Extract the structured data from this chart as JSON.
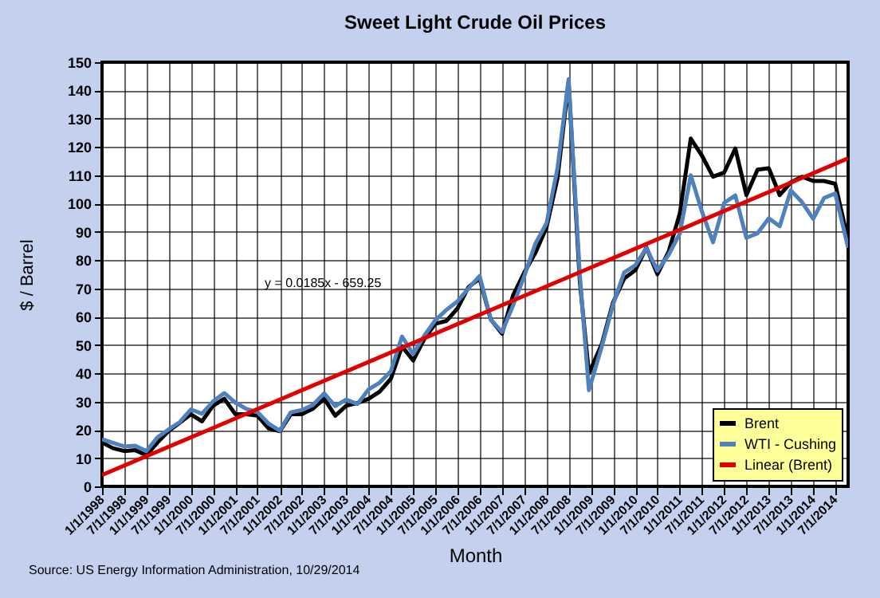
{
  "chart_data": {
    "type": "line",
    "title": "Sweet Light Crude Oil Prices",
    "xlabel": "Month",
    "ylabel": "$ / Barrel",
    "x": [
      "1998-01-01",
      "1998-04-01",
      "1998-07-01",
      "1998-10-01",
      "1999-01-01",
      "1999-04-01",
      "1999-07-01",
      "1999-10-01",
      "2000-01-01",
      "2000-04-01",
      "2000-07-01",
      "2000-10-01",
      "2001-01-01",
      "2001-04-01",
      "2001-07-01",
      "2001-10-01",
      "2002-01-01",
      "2002-04-01",
      "2002-07-01",
      "2002-10-01",
      "2003-01-01",
      "2003-04-01",
      "2003-07-01",
      "2003-10-01",
      "2004-01-01",
      "2004-04-01",
      "2004-07-01",
      "2004-10-01",
      "2005-01-01",
      "2005-04-01",
      "2005-07-01",
      "2005-10-01",
      "2006-01-01",
      "2006-04-01",
      "2006-07-01",
      "2006-10-01",
      "2007-01-01",
      "2007-04-01",
      "2007-07-01",
      "2007-10-01",
      "2008-01-01",
      "2008-04-01",
      "2008-07-01",
      "2008-10-01",
      "2008-12-15",
      "2009-04-01",
      "2009-07-01",
      "2009-10-01",
      "2010-01-01",
      "2010-04-01",
      "2010-07-01",
      "2010-10-01",
      "2011-01-01",
      "2011-04-01",
      "2011-07-01",
      "2011-10-01",
      "2012-01-01",
      "2012-04-01",
      "2012-07-01",
      "2012-10-01",
      "2013-01-01",
      "2013-04-01",
      "2013-07-01",
      "2013-10-01",
      "2014-01-01",
      "2014-04-01",
      "2014-07-01",
      "2014-10-15"
    ],
    "series": [
      {
        "name": "Brent",
        "color": "#000000",
        "values": [
          15.5,
          13.5,
          12.5,
          12.8,
          11,
          15.5,
          19.5,
          22.5,
          25.5,
          23,
          28.5,
          31,
          25.5,
          25.5,
          25,
          20.5,
          19.5,
          25.5,
          25.5,
          27.5,
          31,
          25,
          28.5,
          29.5,
          31,
          33.5,
          38,
          49.5,
          44.5,
          52,
          57.5,
          58.5,
          63,
          70.5,
          73.5,
          59,
          54,
          67.5,
          75.5,
          82.5,
          91.5,
          109,
          143,
          72.5,
          40,
          50.5,
          65,
          73.5,
          76.5,
          84.5,
          75,
          83,
          96.5,
          123,
          117,
          109.5,
          111,
          119.5,
          103,
          112,
          112.5,
          103,
          107.5,
          109.5,
          108,
          108,
          107,
          87
        ]
      },
      {
        "name": "WTI - Cushing",
        "color": "#4f81bd",
        "values": [
          16.7,
          15.4,
          14.1,
          14.4,
          12.5,
          17.3,
          20.1,
          22.7,
          27.2,
          25.7,
          30,
          33,
          29.6,
          27.4,
          26.3,
          22.2,
          19.7,
          26.2,
          27,
          28.8,
          32.9,
          28.4,
          30.7,
          29.1,
          34.3,
          36.7,
          40.7,
          53,
          46.8,
          53.2,
          58.7,
          62.4,
          65.5,
          70,
          74.4,
          58.9,
          54.6,
          63.9,
          74.1,
          85.7,
          93,
          112.5,
          144,
          75,
          34,
          49.6,
          64.2,
          75.7,
          78.2,
          84.3,
          76.3,
          81.9,
          89.4,
          110,
          97.3,
          86.3,
          100.3,
          102.9,
          87.9,
          89.5,
          94.8,
          92,
          104.7,
          100.5,
          94.6,
          102,
          103.6,
          84.4
        ]
      },
      {
        "name": "Linear (Brent)",
        "color": "#e00000",
        "x": [
          "1998-01-01",
          "2014-10-15"
        ],
        "values": [
          4,
          116
        ]
      }
    ],
    "xlim": [
      "1998-01-01",
      "2014-10-15"
    ],
    "xticks": [
      {
        "value": "1998-01-01",
        "label": "1/1/1998"
      },
      {
        "value": "1998-07-01",
        "label": "7/1/1998"
      },
      {
        "value": "1999-01-01",
        "label": "1/1/1999"
      },
      {
        "value": "1999-07-01",
        "label": "7/1/1999"
      },
      {
        "value": "2000-01-01",
        "label": "1/1/2000"
      },
      {
        "value": "2000-07-01",
        "label": "7/1/2000"
      },
      {
        "value": "2001-01-01",
        "label": "1/1/2001"
      },
      {
        "value": "2001-07-01",
        "label": "7/1/2001"
      },
      {
        "value": "2002-01-01",
        "label": "1/1/2002"
      },
      {
        "value": "2002-07-01",
        "label": "7/1/2002"
      },
      {
        "value": "2003-01-01",
        "label": "1/1/2003"
      },
      {
        "value": "2003-07-01",
        "label": "7/1/2003"
      },
      {
        "value": "2004-01-01",
        "label": "1/1/2004"
      },
      {
        "value": "2004-07-01",
        "label": "7/1/2004"
      },
      {
        "value": "2005-01-01",
        "label": "1/1/2005"
      },
      {
        "value": "2005-07-01",
        "label": "7/1/2005"
      },
      {
        "value": "2006-01-01",
        "label": "1/1/2006"
      },
      {
        "value": "2006-07-01",
        "label": "7/1/2006"
      },
      {
        "value": "2007-01-01",
        "label": "1/1/2007"
      },
      {
        "value": "2007-07-01",
        "label": "7/1/2007"
      },
      {
        "value": "2008-01-01",
        "label": "1/1/2008"
      },
      {
        "value": "2008-07-01",
        "label": "7/1/2008"
      },
      {
        "value": "2009-01-01",
        "label": "1/1/2009"
      },
      {
        "value": "2009-07-01",
        "label": "7/1/2009"
      },
      {
        "value": "2010-01-01",
        "label": "1/1/2010"
      },
      {
        "value": "2010-07-01",
        "label": "7/1/2010"
      },
      {
        "value": "2011-01-01",
        "label": "1/1/2011"
      },
      {
        "value": "2011-07-01",
        "label": "7/1/2011"
      },
      {
        "value": "2012-01-01",
        "label": "1/1/2012"
      },
      {
        "value": "2012-07-01",
        "label": "7/1/2012"
      },
      {
        "value": "2013-01-01",
        "label": "1/1/2013"
      },
      {
        "value": "2013-07-01",
        "label": "7/1/2013"
      },
      {
        "value": "2014-01-01",
        "label": "1/1/2014"
      },
      {
        "value": "2014-07-01",
        "label": "7/1/2014"
      }
    ],
    "ylim": [
      0,
      150
    ],
    "yticks": [
      0,
      10,
      20,
      30,
      40,
      50,
      60,
      70,
      80,
      90,
      100,
      110,
      120,
      130,
      140,
      150
    ],
    "grid": true,
    "legend": "bottom right",
    "annotations": [
      "y = 0.0185x - 659.25",
      "Source:  US Energy Information Administration, 10/29/2014"
    ]
  }
}
